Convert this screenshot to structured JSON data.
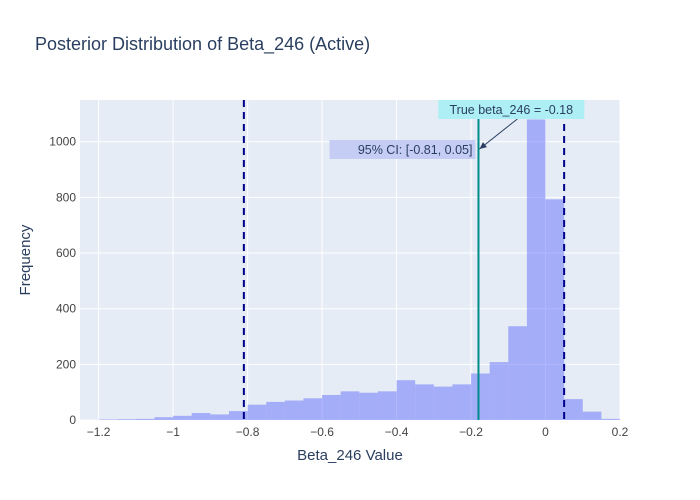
{
  "chart_data": {
    "type": "bar",
    "title": "Posterior Distribution of Beta_246 (Active)",
    "xlabel": "Beta_246 Value",
    "ylabel": "Frequency",
    "xlim": [
      -1.25,
      0.2
    ],
    "ylim": [
      0,
      1150
    ],
    "grid": true,
    "xticks": [
      -1.2,
      -1,
      -0.8,
      -0.6,
      -0.4,
      -0.2,
      0,
      0.2
    ],
    "xtick_labels": [
      "−1.2",
      "−1",
      "−0.8",
      "−0.6",
      "−0.4",
      "−0.2",
      "0",
      "0.2"
    ],
    "yticks": [
      0,
      200,
      400,
      600,
      800,
      1000
    ],
    "ytick_labels": [
      "0",
      "200",
      "400",
      "600",
      "800",
      "1000"
    ],
    "bin_width": 0.05,
    "bins": [
      {
        "start": -1.2,
        "value": 2
      },
      {
        "start": -1.15,
        "value": 3
      },
      {
        "start": -1.1,
        "value": 4
      },
      {
        "start": -1.05,
        "value": 10
      },
      {
        "start": -1.0,
        "value": 15
      },
      {
        "start": -0.95,
        "value": 25
      },
      {
        "start": -0.9,
        "value": 20
      },
      {
        "start": -0.85,
        "value": 32
      },
      {
        "start": -0.8,
        "value": 55
      },
      {
        "start": -0.75,
        "value": 65
      },
      {
        "start": -0.7,
        "value": 70
      },
      {
        "start": -0.65,
        "value": 78
      },
      {
        "start": -0.6,
        "value": 90
      },
      {
        "start": -0.55,
        "value": 103
      },
      {
        "start": -0.5,
        "value": 98
      },
      {
        "start": -0.45,
        "value": 103
      },
      {
        "start": -0.4,
        "value": 143
      },
      {
        "start": -0.35,
        "value": 128
      },
      {
        "start": -0.3,
        "value": 120
      },
      {
        "start": -0.25,
        "value": 128
      },
      {
        "start": -0.2,
        "value": 167
      },
      {
        "start": -0.15,
        "value": 208
      },
      {
        "start": -0.1,
        "value": 337
      },
      {
        "start": -0.05,
        "value": 1080
      },
      {
        "start": 0.0,
        "value": 793
      },
      {
        "start": 0.05,
        "value": 75
      },
      {
        "start": 0.1,
        "value": 30
      },
      {
        "start": 0.15,
        "value": 4
      }
    ],
    "ci_lines": [
      -0.81,
      0.05
    ],
    "true_value": -0.18,
    "colors": {
      "bars": "#636efa",
      "ci_line": "#00008b",
      "true_line": "#008b8b",
      "plot_bg": "#e5ecf6",
      "grid": "#ffffff",
      "ci_label_bg": "#c5cdf5",
      "true_label_bg": "#aeeef5"
    },
    "annotations": {
      "ci_label": "95% CI: [-0.81, 0.05]",
      "true_label": "True beta_246 = -0.18"
    }
  }
}
